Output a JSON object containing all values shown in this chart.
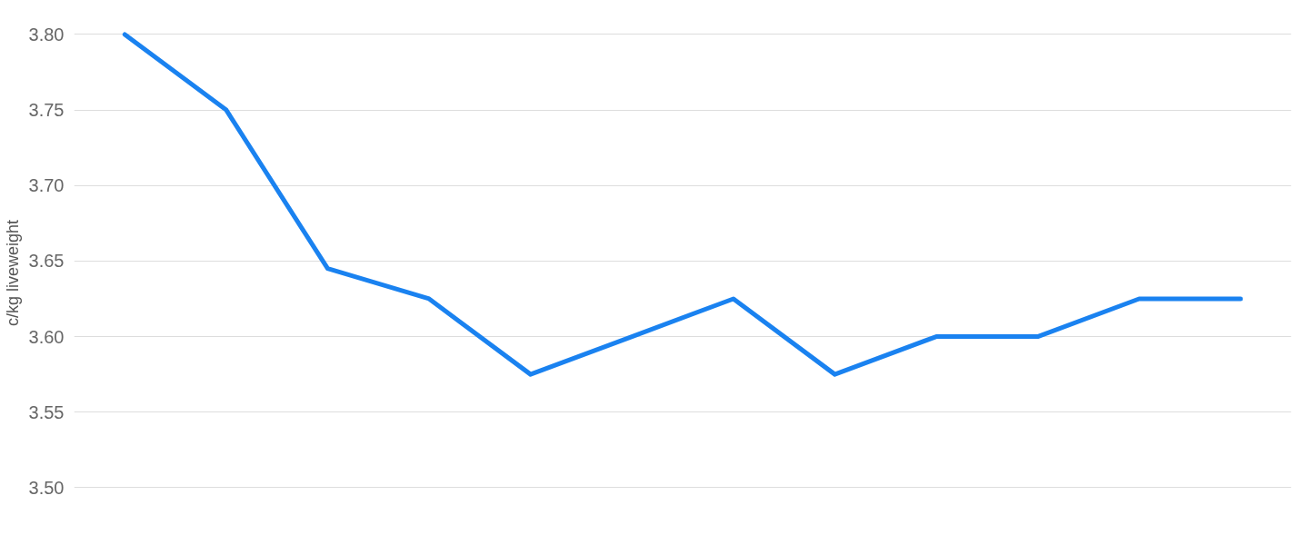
{
  "chart_data": {
    "type": "line",
    "ylabel": "c/kg liveweight",
    "categories": [
      null,
      null,
      null,
      null,
      null,
      null,
      null,
      null,
      null,
      null,
      null,
      null
    ],
    "series": [
      {
        "color": "#1a82f0",
        "values": [
          3.8,
          3.75,
          3.645,
          3.625,
          3.575,
          3.6,
          3.625,
          3.575,
          3.6,
          3.6,
          3.625,
          3.625
        ]
      }
    ],
    "ylim": [
      3.5,
      3.8
    ],
    "yticks": [
      {
        "value": 3.5,
        "label": "3.50"
      },
      {
        "value": 3.55,
        "label": "3.55"
      },
      {
        "value": 3.6,
        "label": "3.60"
      },
      {
        "value": 3.65,
        "label": "3.65"
      },
      {
        "value": 3.7,
        "label": "3.70"
      },
      {
        "value": 3.75,
        "label": "3.75"
      },
      {
        "value": 3.8,
        "label": "3.80"
      }
    ],
    "grid": "y",
    "marker": "none",
    "line_style": "solid",
    "tick_labels": "y"
  }
}
